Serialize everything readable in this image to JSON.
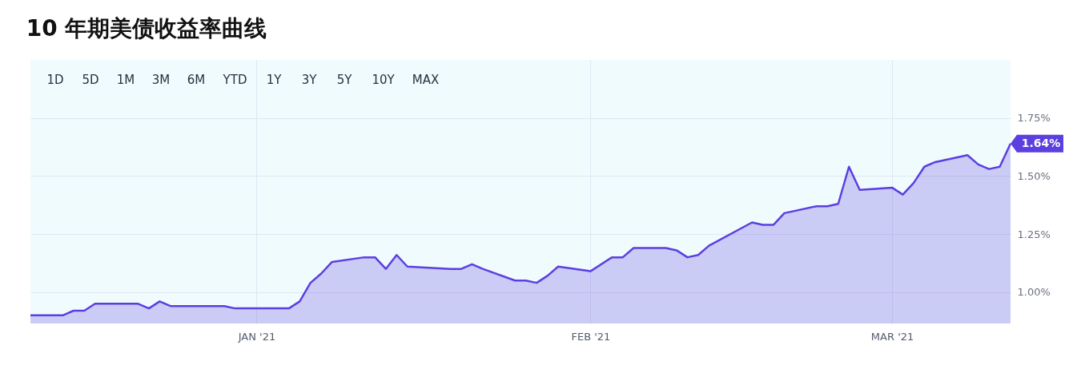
{
  "chart_data": {
    "type": "area",
    "title": "10 年期美债收益率曲线",
    "x": [
      "2020-12-11",
      "2020-12-14",
      "2020-12-15",
      "2020-12-16",
      "2020-12-17",
      "2020-12-18",
      "2020-12-21",
      "2020-12-22",
      "2020-12-23",
      "2020-12-24",
      "2020-12-29",
      "2020-12-30",
      "2021-01-04",
      "2021-01-05",
      "2021-01-06",
      "2021-01-07",
      "2021-01-08",
      "2021-01-11",
      "2021-01-12",
      "2021-01-13",
      "2021-01-14",
      "2021-01-15",
      "2021-01-19",
      "2021-01-20",
      "2021-01-21",
      "2021-01-22",
      "2021-01-25",
      "2021-01-26",
      "2021-01-27",
      "2021-01-28",
      "2021-01-29",
      "2021-02-01",
      "2021-02-03",
      "2021-02-04",
      "2021-02-05",
      "2021-02-08",
      "2021-02-09",
      "2021-02-10",
      "2021-02-11",
      "2021-02-12",
      "2021-02-16",
      "2021-02-17",
      "2021-02-18",
      "2021-02-19",
      "2021-02-22",
      "2021-02-23",
      "2021-02-24",
      "2021-02-25",
      "2021-02-26",
      "2021-03-01",
      "2021-03-02",
      "2021-03-03",
      "2021-03-04",
      "2021-03-05",
      "2021-03-08",
      "2021-03-09",
      "2021-03-10",
      "2021-03-11",
      "2021-03-12"
    ],
    "series": [
      {
        "color": "#5b3fe0",
        "values": [
          0.9,
          0.9,
          0.92,
          0.92,
          0.95,
          0.95,
          0.95,
          0.93,
          0.96,
          0.94,
          0.94,
          0.93,
          0.93,
          0.96,
          1.04,
          1.08,
          1.13,
          1.15,
          1.15,
          1.1,
          1.16,
          1.11,
          1.1,
          1.1,
          1.12,
          1.1,
          1.05,
          1.05,
          1.04,
          1.07,
          1.11,
          1.09,
          1.15,
          1.15,
          1.19,
          1.19,
          1.18,
          1.15,
          1.16,
          1.2,
          1.3,
          1.29,
          1.29,
          1.34,
          1.37,
          1.37,
          1.38,
          1.54,
          1.44,
          1.45,
          1.42,
          1.47,
          1.54,
          1.56,
          1.59,
          1.55,
          1.53,
          1.54,
          1.64
        ]
      }
    ],
    "xlim": [
      "2020-12-11",
      "2021-03-12"
    ],
    "xticks": [
      {
        "value": "2021-01-01",
        "label": "JAN '21"
      },
      {
        "value": "2021-02-01",
        "label": "FEB '21"
      },
      {
        "value": "2021-03-01",
        "label": "MAR '21"
      }
    ],
    "ylim": [
      0.865,
      2.0
    ],
    "yticks": [
      {
        "value": 1.0,
        "label": "1.00%"
      },
      {
        "value": 1.25,
        "label": "1.25%"
      },
      {
        "value": 1.5,
        "label": "1.50%"
      },
      {
        "value": 1.75,
        "label": "1.75%"
      }
    ],
    "grid": true,
    "annotations": [
      {
        "text": "1.64%",
        "x": "2021-03-12",
        "y": 1.64
      },
      "1D",
      "5D",
      "1M",
      "3M",
      "6M",
      "YTD",
      "1Y",
      "3Y",
      "5Y",
      "10Y",
      "MAX"
    ]
  }
}
